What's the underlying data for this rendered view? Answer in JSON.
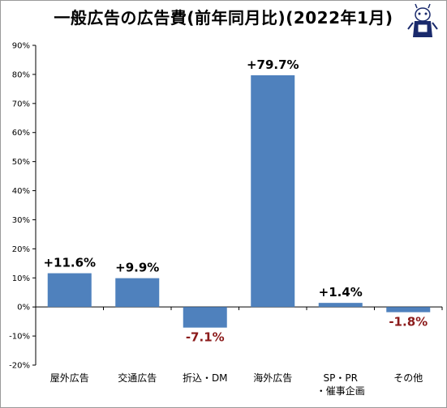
{
  "title": "一般広告の広告費(前年同月比)(2022年1月)",
  "colors": {
    "bar": "#4f81bd",
    "positive_label": "#000000",
    "negative_label": "#8b1a1a",
    "grid": "#000000"
  },
  "chart_data": {
    "type": "bar",
    "categories": [
      "屋外広告",
      "交通広告",
      "折込・DM",
      "海外広告",
      [
        "SP・PR",
        "・催事企画"
      ],
      "その他"
    ],
    "values": [
      11.6,
      9.9,
      -7.1,
      79.7,
      1.4,
      -1.8
    ],
    "data_labels": [
      "+11.6%",
      "+9.9%",
      "-7.1%",
      "+79.7%",
      "+1.4%",
      "-1.8%"
    ],
    "ylim": [
      -20,
      90
    ],
    "yticks": [
      -20,
      -10,
      0,
      10,
      20,
      30,
      40,
      50,
      60,
      70,
      80,
      90
    ],
    "ytick_labels": [
      "-20%",
      "-10%",
      "0%",
      "10%",
      "20%",
      "30%",
      "40%",
      "50%",
      "60%",
      "70%",
      "80%",
      "90%"
    ],
    "grid": false,
    "xlabel": "",
    "ylabel": ""
  }
}
